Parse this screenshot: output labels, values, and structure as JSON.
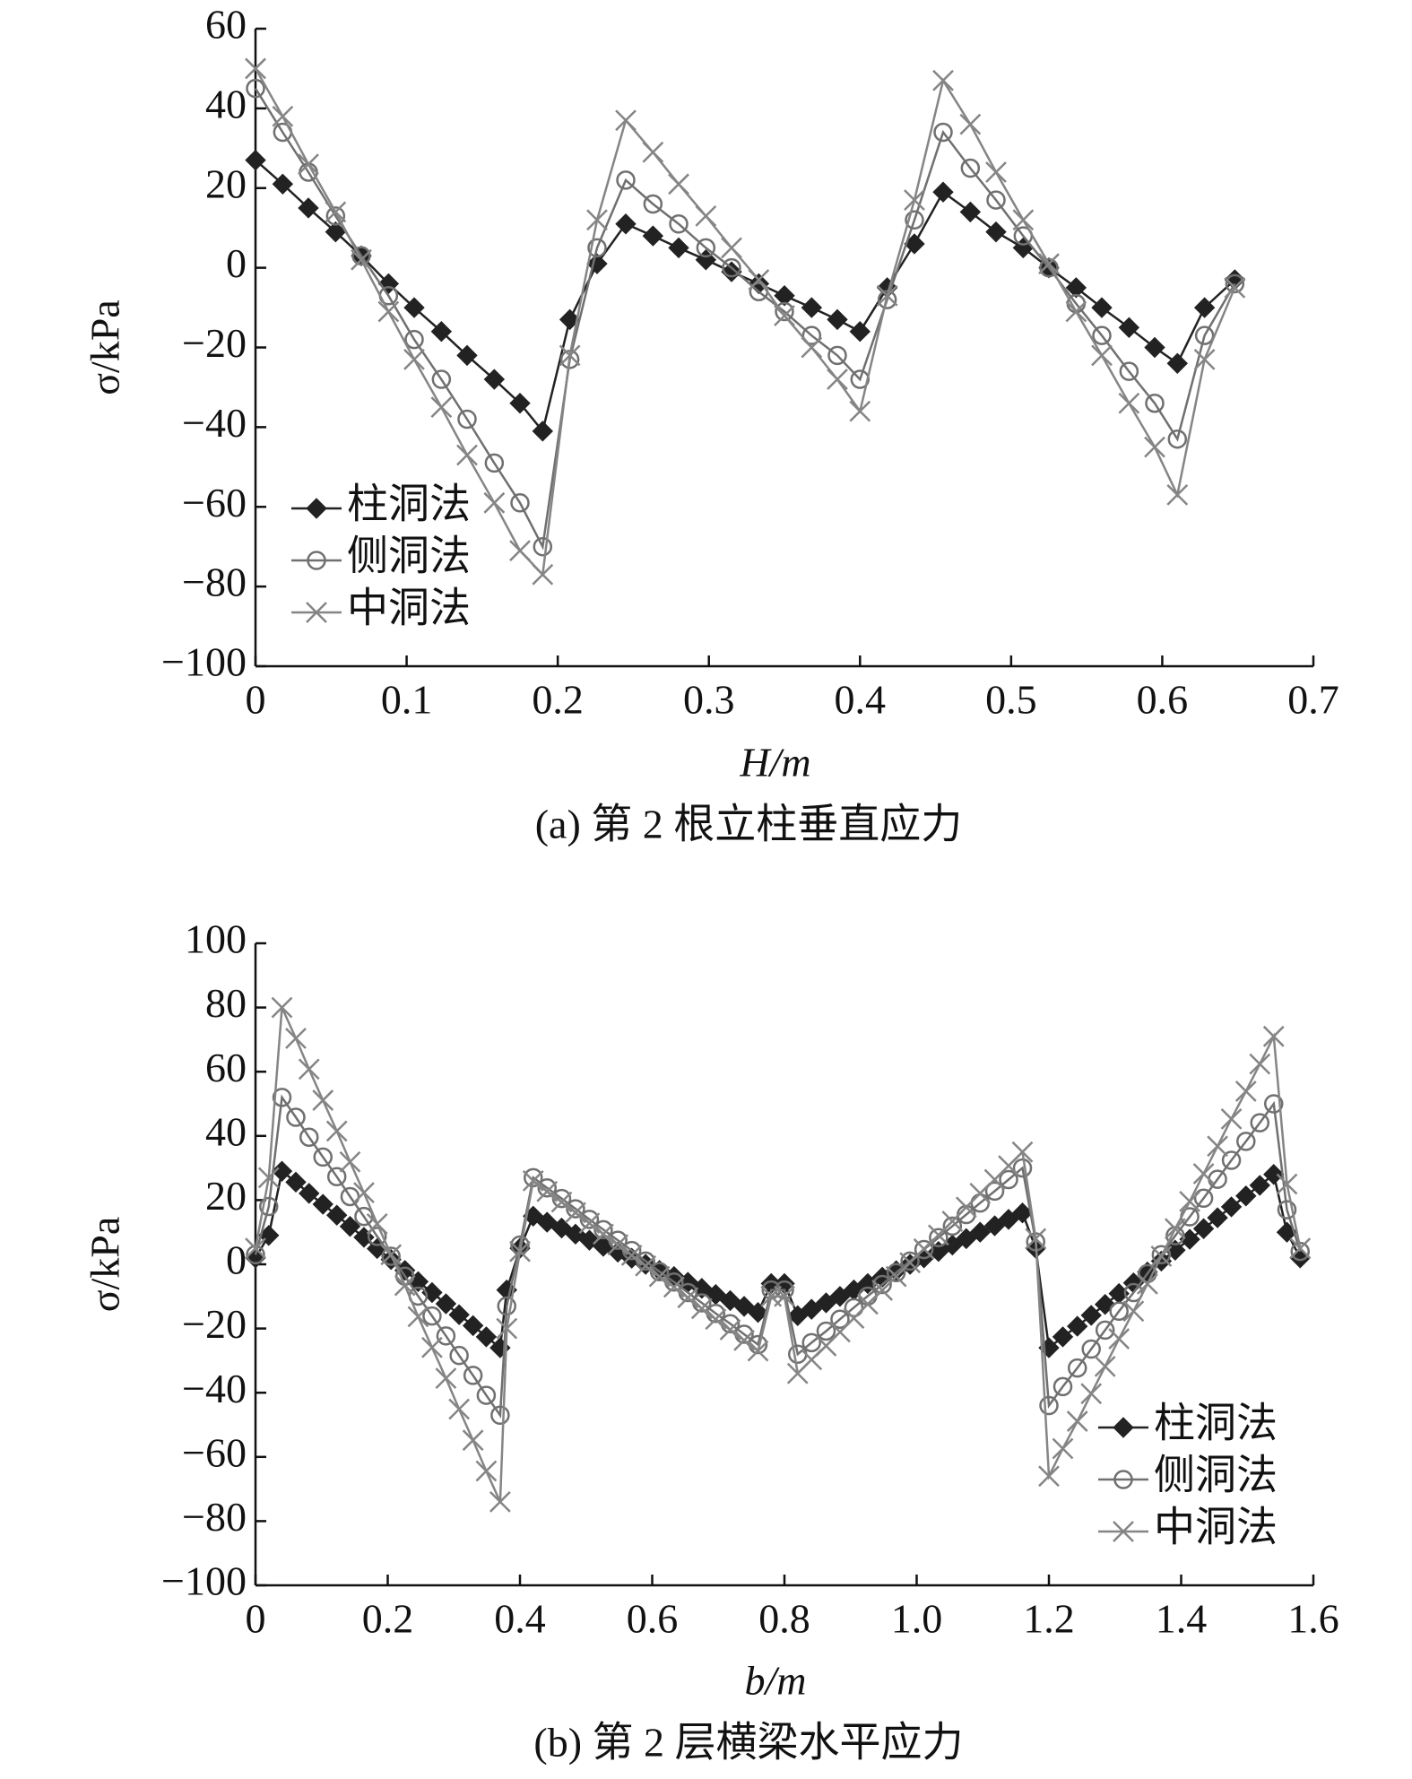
{
  "chart_data": [
    {
      "type": "line",
      "x_label": "H/m",
      "y_label": "σ/kPa",
      "caption": "(a) 第 2 根立柱垂直应力",
      "xlim": [
        0,
        0.7
      ],
      "ylim": [
        -100,
        60
      ],
      "xticks": [
        0,
        0.1,
        0.2,
        0.3,
        0.4,
        0.5,
        0.6,
        0.7
      ],
      "yticks": [
        {
          "value": -100,
          "label": "−100"
        },
        {
          "value": -80,
          "label": "−80"
        },
        {
          "value": -60,
          "label": "−60"
        },
        {
          "value": -40,
          "label": "−40"
        },
        {
          "value": -20,
          "label": "−20"
        },
        0,
        20,
        40,
        60
      ],
      "legend": "lower left",
      "x": [
        0,
        0.018,
        0.035,
        0.053,
        0.07,
        0.088,
        0.105,
        0.123,
        0.14,
        0.158,
        0.175,
        0.19,
        0.208,
        0.226,
        0.245,
        0.263,
        0.28,
        0.298,
        0.315,
        0.333,
        0.35,
        0.368,
        0.385,
        0.4,
        0.418,
        0.436,
        0.455,
        0.473,
        0.49,
        0.508,
        0.525,
        0.543,
        0.56,
        0.578,
        0.595,
        0.61,
        0.628,
        0.648
      ],
      "series": [
        {
          "name": "柱洞法",
          "color": "#222222",
          "marker": "diamond",
          "values": [
            27,
            21,
            15,
            9,
            3,
            -4,
            -10,
            -16,
            -22,
            -28,
            -34,
            -41,
            -13,
            1,
            11,
            8,
            5,
            2,
            -1,
            -4,
            -7,
            -10,
            -13,
            -16,
            -5,
            6,
            19,
            14,
            9,
            5,
            0,
            -5,
            -10,
            -15,
            -20,
            -24,
            -10,
            -3
          ]
        },
        {
          "name": "侧洞法",
          "color": "#707070",
          "marker": "circle",
          "values": [
            45,
            34,
            24,
            13,
            3,
            -7,
            -18,
            -28,
            -38,
            -49,
            -59,
            -70,
            -23,
            5,
            22,
            16,
            11,
            5,
            0,
            -6,
            -11,
            -17,
            -22,
            -28,
            -8,
            12,
            34,
            25,
            17,
            8,
            0,
            -9,
            -17,
            -26,
            -34,
            -43,
            -17,
            -4
          ]
        },
        {
          "name": "中洞法",
          "color": "#858585",
          "marker": "x",
          "values": [
            50,
            38,
            26,
            14,
            2,
            -11,
            -23,
            -35,
            -47,
            -59,
            -71,
            -77,
            -22,
            12,
            37,
            29,
            21,
            13,
            5,
            -3,
            -12,
            -20,
            -28,
            -36,
            -7,
            17,
            47,
            36,
            24,
            12,
            1,
            -11,
            -22,
            -34,
            -45,
            -57,
            -23,
            -5
          ]
        }
      ]
    },
    {
      "type": "line",
      "x_label": "b/m",
      "y_label": "σ/kPa",
      "caption": "(b) 第 2 层横梁水平应力",
      "xlim": [
        0,
        1.6
      ],
      "ylim": [
        -100,
        100
      ],
      "xticks": [
        0,
        0.2,
        0.4,
        0.6,
        0.8,
        {
          "value": 1,
          "label": "1.0"
        },
        1.2,
        1.4,
        1.6
      ],
      "yticks": [
        {
          "value": -100,
          "label": "−100"
        },
        {
          "value": -80,
          "label": "−80"
        },
        {
          "value": -60,
          "label": "−60"
        },
        {
          "value": -40,
          "label": "−40"
        },
        {
          "value": -20,
          "label": "−20"
        },
        0,
        20,
        40,
        60,
        80,
        100
      ],
      "legend": "lower right",
      "x": [
        0,
        0.02,
        0.04,
        0.061,
        0.081,
        0.102,
        0.123,
        0.143,
        0.164,
        0.184,
        0.205,
        0.226,
        0.246,
        0.267,
        0.288,
        0.308,
        0.329,
        0.349,
        0.37,
        0.38,
        0.4,
        0.42,
        0.441,
        0.463,
        0.484,
        0.505,
        0.526,
        0.548,
        0.569,
        0.59,
        0.611,
        0.633,
        0.654,
        0.675,
        0.696,
        0.718,
        0.739,
        0.76,
        0.78,
        0.8,
        0.82,
        0.841,
        0.863,
        0.884,
        0.905,
        0.926,
        0.948,
        0.969,
        0.99,
        1.011,
        1.033,
        1.054,
        1.075,
        1.096,
        1.118,
        1.139,
        1.16,
        1.18,
        1.2,
        1.221,
        1.243,
        1.264,
        1.285,
        1.306,
        1.328,
        1.349,
        1.37,
        1.391,
        1.413,
        1.434,
        1.455,
        1.476,
        1.498,
        1.519,
        1.54,
        1.56,
        1.58
      ],
      "series": [
        {
          "name": "柱洞法",
          "color": "#222222",
          "marker": "diamond",
          "values": [
            2,
            9,
            29,
            25.6,
            22.1,
            18.7,
            15.3,
            11.8,
            8.4,
            4.9,
            1.5,
            -1.9,
            -5.4,
            -8.8,
            -12.3,
            -15.7,
            -19.1,
            -22.6,
            -26,
            -8,
            5,
            15,
            13.1,
            11.3,
            9.4,
            7.5,
            5.6,
            3.8,
            1.9,
            0,
            -1.9,
            -3.8,
            -5.6,
            -7.5,
            -9.4,
            -11.3,
            -13.1,
            -15,
            -6,
            -6,
            -16,
            -14,
            -12,
            -10,
            -8,
            -6,
            -4,
            -2,
            0,
            2,
            4,
            6,
            8,
            10,
            12,
            14,
            16,
            5,
            -26,
            -22.6,
            -19.3,
            -15.9,
            -12.5,
            -9.1,
            -5.8,
            -2.4,
            1,
            4.4,
            7.8,
            11.1,
            14.5,
            17.9,
            21.3,
            24.6,
            28,
            10,
            2
          ]
        },
        {
          "name": "侧洞法",
          "color": "#707070",
          "marker": "circle",
          "values": [
            3,
            18,
            52,
            45.8,
            39.6,
            33.4,
            27.3,
            21.1,
            14.9,
            8.7,
            2.5,
            -3.7,
            -9.9,
            -16.1,
            -22.3,
            -28.4,
            -34.6,
            -40.8,
            -47,
            -13,
            6,
            27,
            23.8,
            20.5,
            17.3,
            14,
            10.8,
            7.5,
            4.3,
            1,
            -2.3,
            -5.5,
            -8.8,
            -12,
            -15.3,
            -18.5,
            -21.8,
            -25,
            -8,
            -8,
            -28,
            -24.4,
            -20.8,
            -17.1,
            -13.5,
            -9.9,
            -6.3,
            -2.6,
            1,
            4.6,
            8.3,
            11.9,
            15.5,
            19.1,
            22.8,
            26.4,
            30,
            7,
            -44,
            -38.1,
            -32.3,
            -26.4,
            -20.5,
            -14.6,
            -8.8,
            -2.9,
            3,
            8.9,
            14.8,
            20.6,
            26.5,
            32.4,
            38.3,
            44.1,
            50,
            17,
            4
          ]
        },
        {
          "name": "中洞法",
          "color": "#858585",
          "marker": "x",
          "values": [
            5,
            27,
            80,
            70.4,
            60.8,
            51.1,
            41.5,
            31.9,
            22.3,
            12.6,
            3,
            -6.6,
            -16.3,
            -25.9,
            -35.5,
            -45.1,
            -54.8,
            -64.4,
            -74,
            -20,
            4,
            26,
            22.7,
            19.4,
            16.1,
            12.8,
            9.4,
            6.1,
            2.8,
            -0.5,
            -3.8,
            -7.1,
            -10.4,
            -13.8,
            -17.1,
            -20.4,
            -23.7,
            -27,
            -10,
            -10,
            -34,
            -29.7,
            -25.4,
            -21.1,
            -16.8,
            -12.4,
            -8.1,
            -3.8,
            0.5,
            4.8,
            9.1,
            13.4,
            17.8,
            22.1,
            26.4,
            30.7,
            35,
            8,
            -66,
            -57.4,
            -48.9,
            -40.3,
            -31.8,
            -23.2,
            -14.6,
            -6.1,
            2.5,
            11.1,
            19.6,
            28.2,
            36.8,
            45.3,
            53.9,
            62.4,
            71,
            25,
            5
          ]
        }
      ]
    }
  ]
}
